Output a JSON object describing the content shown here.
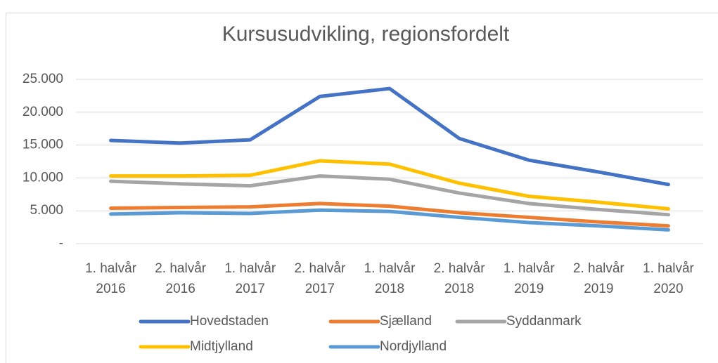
{
  "chart_data": {
    "type": "line",
    "title": "Kursusudvikling, regionsfordelt",
    "categories": [
      "1. halvår 2016",
      "2. halvår 2016",
      "1. halvår 2017",
      "2. halvår 2017",
      "1. halvår 2018",
      "2. halvår 2018",
      "1. halvår 2019",
      "2. halvår 2019",
      "1. halvår 2020"
    ],
    "series": [
      {
        "name": "Hovedstaden",
        "color": "#4472c4",
        "values": [
          15700,
          15300,
          15800,
          22400,
          23600,
          16000,
          12700,
          10900,
          9000
        ]
      },
      {
        "name": "Sjælland",
        "color": "#ed7d31",
        "values": [
          5400,
          5500,
          5600,
          6100,
          5700,
          4700,
          4000,
          3300,
          2700
        ]
      },
      {
        "name": "Syddanmark",
        "color": "#a5a5a5",
        "values": [
          9500,
          9100,
          8800,
          10300,
          9800,
          7700,
          6100,
          5200,
          4400
        ]
      },
      {
        "name": "Midtjylland",
        "color": "#ffc000",
        "values": [
          10300,
          10300,
          10400,
          12600,
          12100,
          9200,
          7200,
          6300,
          5300
        ]
      },
      {
        "name": "Nordjylland",
        "color": "#5b9bd5",
        "values": [
          4500,
          4700,
          4600,
          5100,
          4900,
          4000,
          3200,
          2700,
          2100
        ]
      }
    ],
    "ylim": [
      0,
      25000
    ],
    "yticks": [
      {
        "value": 0,
        "label": "-"
      },
      {
        "value": 5000,
        "label": "5.000"
      },
      {
        "value": 10000,
        "label": "10.000"
      },
      {
        "value": 15000,
        "label": "15.000"
      },
      {
        "value": 20000,
        "label": "20.000"
      },
      {
        "value": 25000,
        "label": "25.000"
      }
    ],
    "grid": true,
    "legend": "bottom"
  }
}
